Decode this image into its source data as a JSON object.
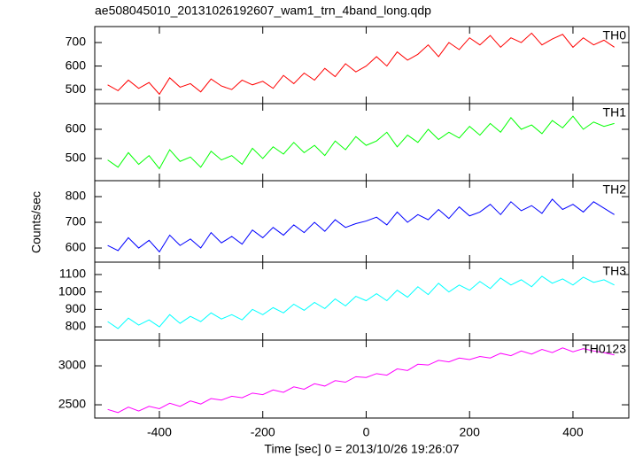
{
  "chart_data": [
    {
      "type": "line",
      "title": "ae508045010_20131026192607_wam1_trn_4band_long.qdp",
      "x": [
        -500,
        -480,
        -460,
        -440,
        -420,
        -400,
        -380,
        -360,
        -340,
        -320,
        -300,
        -280,
        -260,
        -240,
        -220,
        -200,
        -180,
        -160,
        -140,
        -120,
        -100,
        -80,
        -60,
        -40,
        -20,
        0,
        20,
        40,
        60,
        80,
        100,
        120,
        140,
        160,
        180,
        200,
        220,
        240,
        260,
        280,
        300,
        320,
        340,
        360,
        380,
        400,
        420,
        440,
        460,
        480
      ],
      "series": [
        {
          "name": "TH0",
          "color": "#ff0000",
          "values": [
            520,
            495,
            540,
            505,
            530,
            480,
            550,
            510,
            525,
            490,
            545,
            515,
            500,
            540,
            520,
            535,
            505,
            560,
            525,
            570,
            540,
            590,
            555,
            610,
            575,
            600,
            640,
            600,
            660,
            625,
            650,
            690,
            640,
            700,
            670,
            720,
            690,
            730,
            680,
            720,
            700,
            740,
            690,
            715,
            735,
            680,
            720,
            690,
            710,
            680
          ]
        }
      ],
      "xlim": [
        -525,
        508
      ],
      "xticks": [
        -400,
        -200,
        0,
        200,
        400
      ],
      "ylim": [
        440,
        768
      ],
      "yticks": [
        500,
        600,
        700
      ]
    },
    {
      "type": "line",
      "x": [
        -500,
        -480,
        -460,
        -440,
        -420,
        -400,
        -380,
        -360,
        -340,
        -320,
        -300,
        -280,
        -260,
        -240,
        -220,
        -200,
        -180,
        -160,
        -140,
        -120,
        -100,
        -80,
        -60,
        -40,
        -20,
        0,
        20,
        40,
        60,
        80,
        100,
        120,
        140,
        160,
        180,
        200,
        220,
        240,
        260,
        280,
        300,
        320,
        340,
        360,
        380,
        400,
        420,
        440,
        460,
        480
      ],
      "series": [
        {
          "name": "TH1",
          "color": "#00ff00",
          "values": [
            495,
            470,
            520,
            480,
            510,
            465,
            530,
            490,
            505,
            470,
            525,
            495,
            510,
            480,
            535,
            500,
            540,
            515,
            555,
            520,
            545,
            510,
            560,
            530,
            575,
            545,
            560,
            590,
            540,
            580,
            555,
            600,
            565,
            590,
            570,
            610,
            580,
            620,
            590,
            640,
            600,
            615,
            585,
            630,
            605,
            645,
            600,
            625,
            610,
            620
          ]
        }
      ],
      "xlim": [
        -525,
        508
      ],
      "xticks": [
        -400,
        -200,
        0,
        200,
        400
      ],
      "ylim": [
        424,
        688
      ],
      "yticks": [
        500,
        600
      ]
    },
    {
      "type": "line",
      "ylabel": "Counts/sec",
      "x": [
        -500,
        -480,
        -460,
        -440,
        -420,
        -400,
        -380,
        -360,
        -340,
        -320,
        -300,
        -280,
        -260,
        -240,
        -220,
        -200,
        -180,
        -160,
        -140,
        -120,
        -100,
        -80,
        -60,
        -40,
        -20,
        0,
        20,
        40,
        60,
        80,
        100,
        120,
        140,
        160,
        180,
        200,
        220,
        240,
        260,
        280,
        300,
        320,
        340,
        360,
        380,
        400,
        420,
        440,
        460,
        480
      ],
      "series": [
        {
          "name": "TH2",
          "color": "#0000ff",
          "values": [
            610,
            590,
            640,
            600,
            630,
            585,
            650,
            610,
            635,
            600,
            660,
            620,
            645,
            615,
            670,
            640,
            680,
            650,
            690,
            660,
            700,
            665,
            710,
            680,
            695,
            705,
            720,
            690,
            740,
            700,
            730,
            710,
            750,
            715,
            760,
            725,
            740,
            770,
            730,
            780,
            745,
            765,
            735,
            790,
            750,
            770,
            740,
            780,
            755,
            730
          ]
        }
      ],
      "xlim": [
        -525,
        508
      ],
      "xticks": [
        -400,
        -200,
        0,
        200,
        400
      ],
      "ylim": [
        545,
        862
      ],
      "yticks": [
        600,
        700,
        800
      ]
    },
    {
      "type": "line",
      "x": [
        -500,
        -480,
        -460,
        -440,
        -420,
        -400,
        -380,
        -360,
        -340,
        -320,
        -300,
        -280,
        -260,
        -240,
        -220,
        -200,
        -180,
        -160,
        -140,
        -120,
        -100,
        -80,
        -60,
        -40,
        -20,
        0,
        20,
        40,
        60,
        80,
        100,
        120,
        140,
        160,
        180,
        200,
        220,
        240,
        260,
        280,
        300,
        320,
        340,
        360,
        380,
        400,
        420,
        440,
        460,
        480
      ],
      "series": [
        {
          "name": "TH3",
          "color": "#00ffff",
          "values": [
            830,
            790,
            850,
            810,
            840,
            800,
            870,
            820,
            860,
            830,
            880,
            845,
            870,
            840,
            900,
            870,
            910,
            880,
            930,
            895,
            940,
            905,
            960,
            920,
            975,
            950,
            990,
            950,
            1010,
            970,
            1030,
            985,
            1050,
            1000,
            1040,
            1010,
            1060,
            1020,
            1080,
            1040,
            1070,
            1030,
            1090,
            1050,
            1075,
            1040,
            1085,
            1055,
            1070,
            1040
          ]
        }
      ],
      "xlim": [
        -525,
        508
      ],
      "xticks": [
        -400,
        -200,
        0,
        200,
        400
      ],
      "ylim": [
        724,
        1171
      ],
      "yticks": [
        800,
        900,
        1000,
        1100
      ]
    },
    {
      "type": "line",
      "xlabel": "Time [sec] 0 = 2013/10/26 19:26:07",
      "x": [
        -500,
        -480,
        -460,
        -440,
        -420,
        -400,
        -380,
        -360,
        -340,
        -320,
        -300,
        -280,
        -260,
        -240,
        -220,
        -200,
        -180,
        -160,
        -140,
        -120,
        -100,
        -80,
        -60,
        -40,
        -20,
        0,
        20,
        40,
        60,
        80,
        100,
        120,
        140,
        160,
        180,
        200,
        220,
        240,
        260,
        280,
        300,
        320,
        340,
        360,
        380,
        400,
        420,
        440,
        460,
        480
      ],
      "series": [
        {
          "name": "TH0123",
          "color": "#ff00ff",
          "values": [
            2440,
            2400,
            2470,
            2420,
            2480,
            2450,
            2520,
            2480,
            2550,
            2510,
            2580,
            2560,
            2610,
            2590,
            2650,
            2630,
            2690,
            2660,
            2730,
            2700,
            2770,
            2740,
            2810,
            2790,
            2860,
            2850,
            2900,
            2880,
            2960,
            2940,
            3020,
            3010,
            3070,
            3050,
            3100,
            3080,
            3120,
            3100,
            3160,
            3130,
            3190,
            3150,
            3210,
            3170,
            3230,
            3180,
            3220,
            3190,
            3170,
            3140
          ]
        }
      ],
      "xlim": [
        -525,
        508
      ],
      "xticks": [
        -400,
        -200,
        0,
        200,
        400
      ],
      "ylim": [
        2330,
        3330
      ],
      "yticks": [
        2500,
        3000
      ]
    }
  ]
}
